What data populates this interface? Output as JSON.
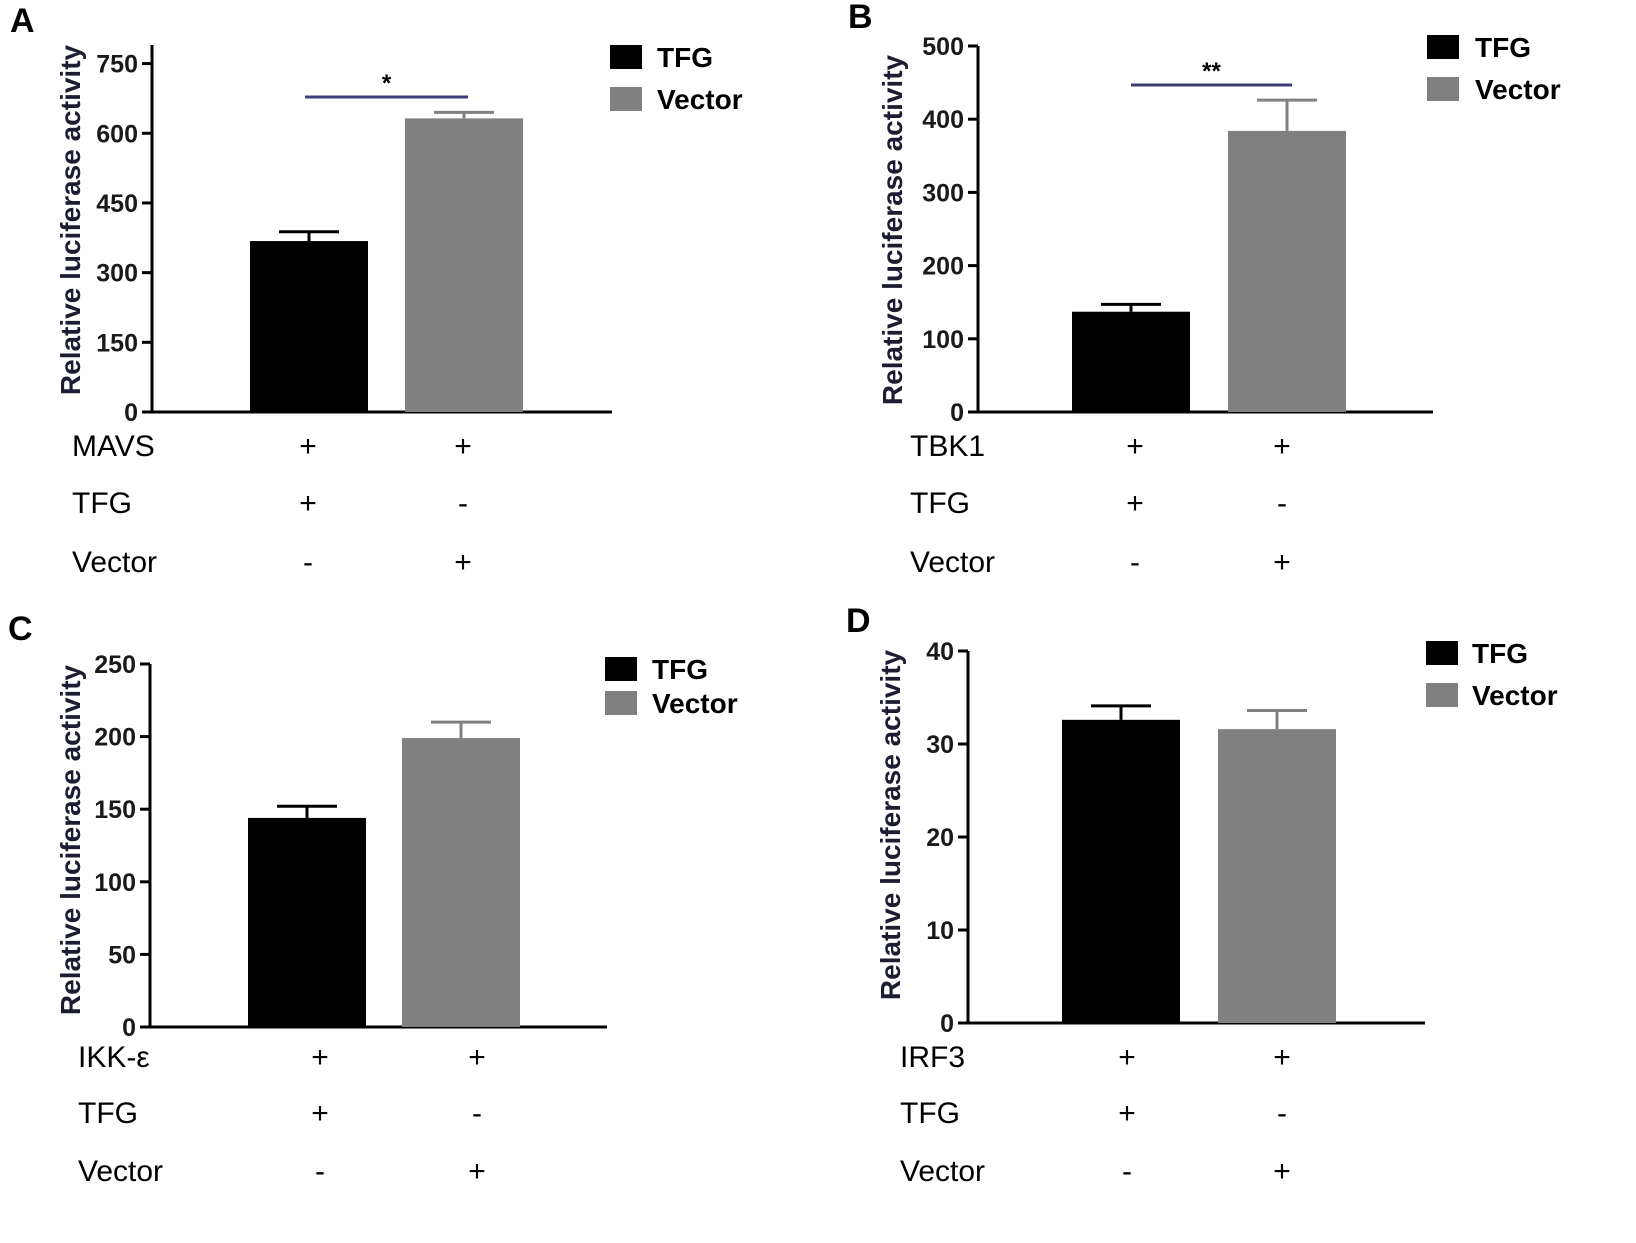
{
  "colors": {
    "tfg": "#000000",
    "vector": "#808080",
    "sig_line": "#3d3d7a",
    "axis": "#000000"
  },
  "chart_data": [
    {
      "type": "bar",
      "panel": "A",
      "ylabel": "Relative luciferase activity",
      "ylim": [
        0,
        790
      ],
      "yticks": [
        0,
        150,
        300,
        450,
        600,
        750
      ],
      "series": [
        {
          "name": "TFG",
          "value": 368,
          "error": 20
        },
        {
          "name": "Vector",
          "value": 632,
          "error": 13
        }
      ],
      "significance": "*",
      "conditions": [
        {
          "label": "MAVS",
          "marks": [
            "+",
            "+"
          ]
        },
        {
          "label": "TFG",
          "marks": [
            "+",
            "-"
          ]
        },
        {
          "label": "Vector",
          "marks": [
            "-",
            "+"
          ]
        }
      ]
    },
    {
      "type": "bar",
      "panel": "B",
      "ylabel": "Relative luciferase activity",
      "ylim": [
        0,
        500
      ],
      "yticks": [
        0,
        100,
        200,
        300,
        400,
        500
      ],
      "series": [
        {
          "name": "TFG",
          "value": 137,
          "error": 10
        },
        {
          "name": "Vector",
          "value": 384,
          "error": 42
        }
      ],
      "significance": "**",
      "conditions": [
        {
          "label": "TBK1",
          "marks": [
            "+",
            "+"
          ]
        },
        {
          "label": "TFG",
          "marks": [
            "+",
            "-"
          ]
        },
        {
          "label": "Vector",
          "marks": [
            "-",
            "+"
          ]
        }
      ]
    },
    {
      "type": "bar",
      "panel": "C",
      "ylabel": "Relative luciferase activity",
      "ylim": [
        0,
        250
      ],
      "yticks": [
        0,
        50,
        100,
        150,
        200,
        250
      ],
      "series": [
        {
          "name": "TFG",
          "value": 144,
          "error": 8
        },
        {
          "name": "Vector",
          "value": 199,
          "error": 11
        }
      ],
      "significance": "",
      "conditions": [
        {
          "label": "IKK-ε",
          "marks": [
            "+",
            "+"
          ]
        },
        {
          "label": "TFG",
          "marks": [
            "+",
            "-"
          ]
        },
        {
          "label": "Vector",
          "marks": [
            "-",
            "+"
          ]
        }
      ]
    },
    {
      "type": "bar",
      "panel": "D",
      "ylabel": "Relative luciferase activity",
      "ylim": [
        0,
        40
      ],
      "yticks": [
        0,
        10,
        20,
        30,
        40
      ],
      "series": [
        {
          "name": "TFG",
          "value": 32.6,
          "error": 1.5
        },
        {
          "name": "Vector",
          "value": 31.6,
          "error": 2.0
        }
      ],
      "significance": "",
      "conditions": [
        {
          "label": "IRF3",
          "marks": [
            "+",
            "+"
          ]
        },
        {
          "label": "TFG",
          "marks": [
            "+",
            "-"
          ]
        },
        {
          "label": "Vector",
          "marks": [
            "-",
            "+"
          ]
        }
      ]
    }
  ]
}
